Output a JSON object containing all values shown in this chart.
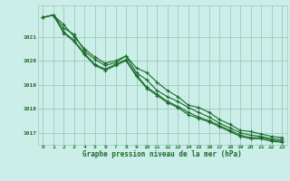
{
  "title": "Graphe pression niveau de la mer (hPa)",
  "bg_color": "#cceee8",
  "grid_color": "#99ccbb",
  "line_color": "#1a6b2a",
  "xlim": [
    -0.5,
    23.5
  ],
  "ylim": [
    1016.5,
    1022.3
  ],
  "yticks": [
    1017,
    1018,
    1019,
    1020,
    1021
  ],
  "xticks": [
    0,
    1,
    2,
    3,
    4,
    5,
    6,
    7,
    8,
    9,
    10,
    11,
    12,
    13,
    14,
    15,
    16,
    17,
    18,
    19,
    20,
    21,
    22,
    23
  ],
  "series": [
    [
      1021.8,
      1021.9,
      1021.5,
      1021.0,
      1020.5,
      1020.15,
      1019.9,
      1020.0,
      1020.2,
      1019.7,
      1019.5,
      1019.1,
      1018.75,
      1018.5,
      1018.15,
      1018.05,
      1017.85,
      1017.55,
      1017.35,
      1017.1,
      1017.05,
      1016.95,
      1016.85,
      1016.8
    ],
    [
      1021.8,
      1021.9,
      1021.35,
      1021.1,
      1020.4,
      1020.05,
      1019.8,
      1019.92,
      1020.2,
      1019.5,
      1019.2,
      1018.75,
      1018.5,
      1018.3,
      1018.05,
      1017.85,
      1017.65,
      1017.4,
      1017.2,
      1017.0,
      1016.9,
      1016.85,
      1016.75,
      1016.72
    ],
    [
      1021.8,
      1021.9,
      1021.2,
      1020.85,
      1020.3,
      1019.85,
      1019.65,
      1019.85,
      1020.05,
      1019.4,
      1018.9,
      1018.6,
      1018.3,
      1018.1,
      1017.85,
      1017.65,
      1017.5,
      1017.3,
      1017.1,
      1016.9,
      1016.8,
      1016.8,
      1016.7,
      1016.65
    ],
    [
      1021.8,
      1021.9,
      1021.15,
      1020.8,
      1020.25,
      1019.8,
      1019.6,
      1019.8,
      1020.0,
      1019.35,
      1018.85,
      1018.55,
      1018.25,
      1018.05,
      1017.75,
      1017.6,
      1017.45,
      1017.25,
      1017.05,
      1016.85,
      1016.75,
      1016.75,
      1016.65,
      1016.6
    ]
  ]
}
